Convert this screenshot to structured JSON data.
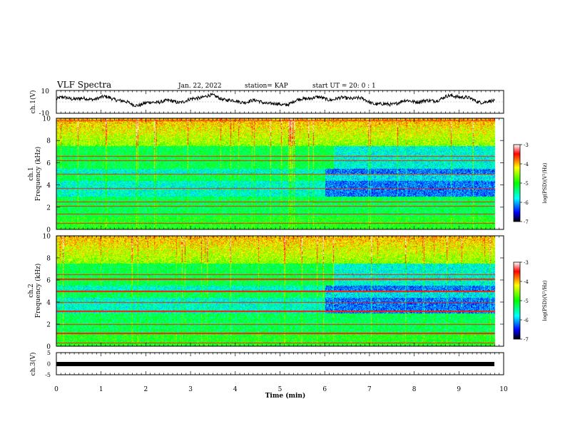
{
  "header": {
    "title": "VLF Spectra",
    "date": "Jan. 22, 2022",
    "station": "station= KAP",
    "start": "start  UT =  20: 0 : 1"
  },
  "chart_data": [
    {
      "id": "ch1_waveform",
      "type": "line",
      "ylabel": "ch.1(V)",
      "ylim": [
        -10,
        10
      ],
      "yticklabels": [
        "10",
        "-10"
      ],
      "xlim": [
        0,
        10
      ],
      "x_end": 9.8,
      "approx_level_range": [
        -4,
        6
      ]
    },
    {
      "id": "ch1_spectrogram",
      "type": "heatmap",
      "ylabel": "ch.1\nFrequency (kHz)",
      "yticks": [
        0,
        2,
        4,
        6,
        8,
        10
      ],
      "ylim": [
        0,
        10
      ],
      "xlim": [
        0,
        10
      ],
      "x_end": 9.8,
      "colorbar": {
        "label": "log(PSD)(V²/Hz)",
        "range": [
          -7,
          -3
        ],
        "ticks": [
          -3,
          -4,
          -5,
          -6,
          -7
        ]
      }
    },
    {
      "id": "ch2_spectrogram",
      "type": "heatmap",
      "ylabel": "ch.2\nFrequency (kHz)",
      "yticks": [
        0,
        2,
        4,
        6,
        8,
        10
      ],
      "ylim": [
        0,
        10
      ],
      "xlim": [
        0,
        10
      ],
      "x_end": 9.8,
      "colorbar": {
        "label": "log(PSD)(V²/Hz)",
        "range": [
          -7,
          -3
        ],
        "ticks": [
          -3,
          -4,
          -5,
          -6,
          -7
        ]
      }
    },
    {
      "id": "ch3_waveform",
      "type": "line",
      "ylabel": "ch.3(V)",
      "ylim": [
        -5,
        5
      ],
      "yticks": [
        -5,
        0,
        5
      ],
      "xlim": [
        0,
        10
      ],
      "x_end": 9.8,
      "level": 0,
      "xlabel": "Time  (min)",
      "xticks": [
        0,
        1,
        2,
        3,
        4,
        5,
        6,
        7,
        8,
        9,
        10
      ]
    }
  ]
}
